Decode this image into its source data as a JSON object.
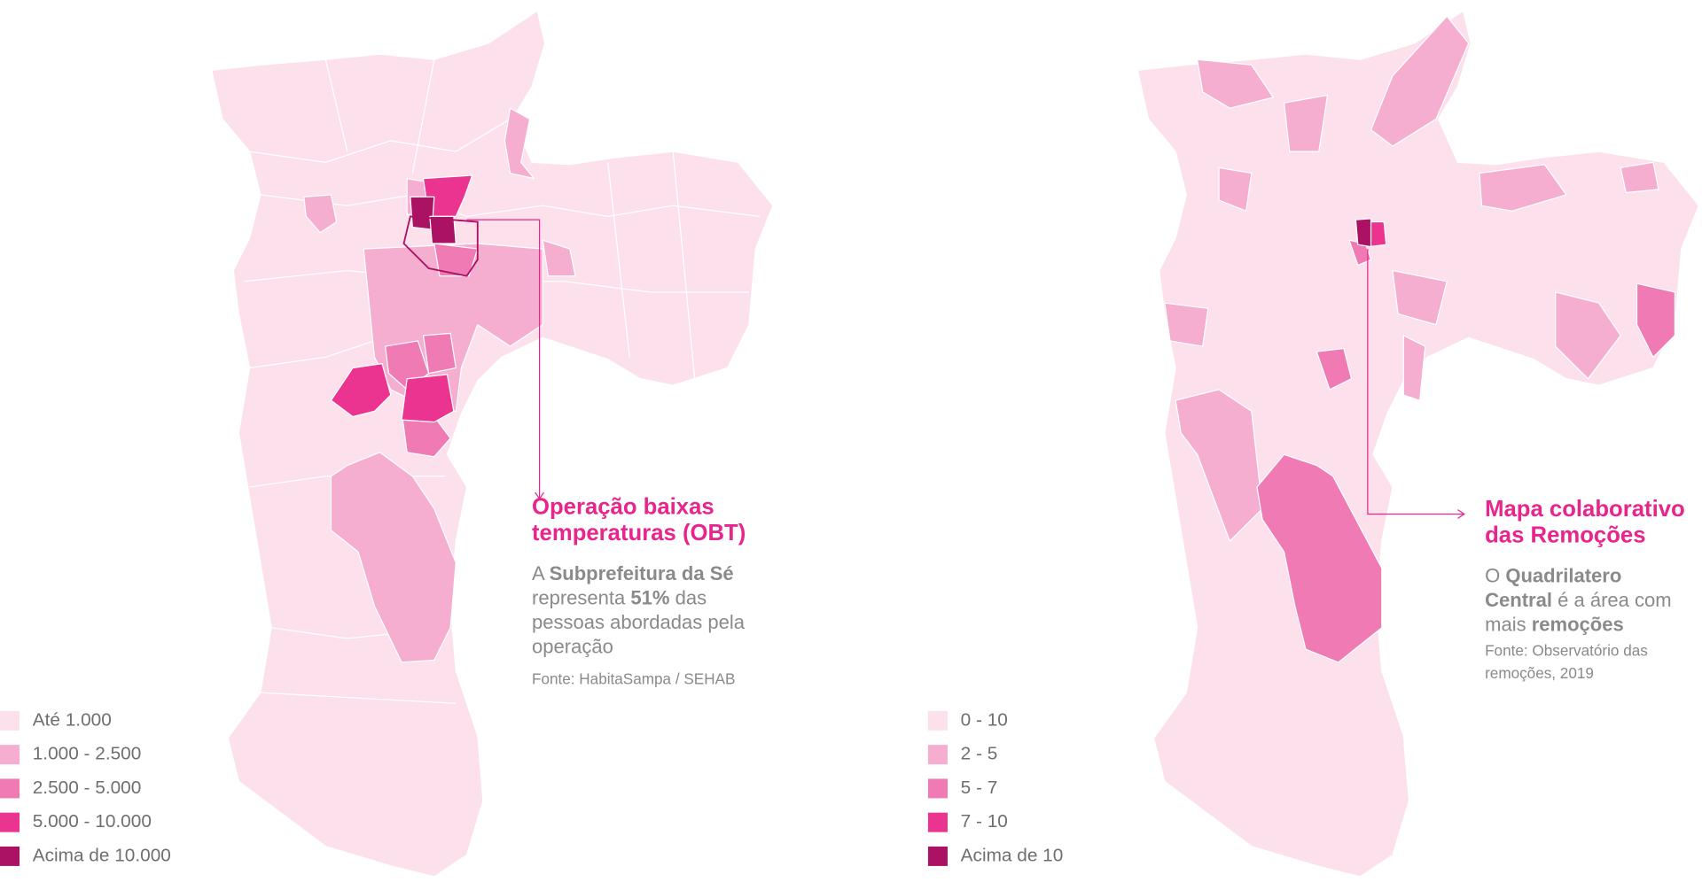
{
  "maps": [
    {
      "title": [
        "Operação baixas",
        "temperaturas (OBT)"
      ],
      "description": [
        [
          {
            "text": "A ",
            "bold": false
          },
          {
            "text": "Subprefeitura da Sé",
            "bold": true
          }
        ],
        [
          {
            "text": "representa ",
            "bold": false
          },
          {
            "text": "51%",
            "bold": true
          },
          {
            "text": " das",
            "bold": false
          }
        ],
        [
          {
            "text": "pessoas abordadas pela",
            "bold": false
          }
        ],
        [
          {
            "text": "operação",
            "bold": false
          }
        ]
      ],
      "source": [
        "Fonte: HabitaSampa / SEHAB"
      ],
      "legend": [
        {
          "label": "Até 1.000",
          "color": "#fce1ec"
        },
        {
          "label": "1.000 - 2.500",
          "color": "#f6aed0"
        },
        {
          "label": "2.500 - 5.000",
          "color": "#f07ab4"
        },
        {
          "label": "5.000 - 10.000",
          "color": "#ea3490"
        },
        {
          "label": "Acima de 10.000",
          "color": "#ac1263"
        }
      ]
    },
    {
      "title": [
        "Mapa colaborativo",
        "das Remoções"
      ],
      "description": [
        [
          {
            "text": "O ",
            "bold": false
          },
          {
            "text": "Quadrilatero",
            "bold": true
          }
        ],
        [
          {
            "text": "Central",
            "bold": true
          },
          {
            "text": " é a área com",
            "bold": false
          }
        ],
        [
          {
            "text": "mais ",
            "bold": false
          },
          {
            "text": "remoções",
            "bold": true
          }
        ]
      ],
      "source": [
        "Fonte: Observatório das",
        "remoções, 2019"
      ],
      "legend": [
        {
          "label": "0 - 10",
          "color": "#fce1ec"
        },
        {
          "label": "2 - 5",
          "color": "#f6aed0"
        },
        {
          "label": "5 - 7",
          "color": "#f07ab4"
        },
        {
          "label": "7 - 10",
          "color": "#ea3490"
        },
        {
          "label": "Acima de 10",
          "color": "#ac1263"
        }
      ]
    }
  ]
}
